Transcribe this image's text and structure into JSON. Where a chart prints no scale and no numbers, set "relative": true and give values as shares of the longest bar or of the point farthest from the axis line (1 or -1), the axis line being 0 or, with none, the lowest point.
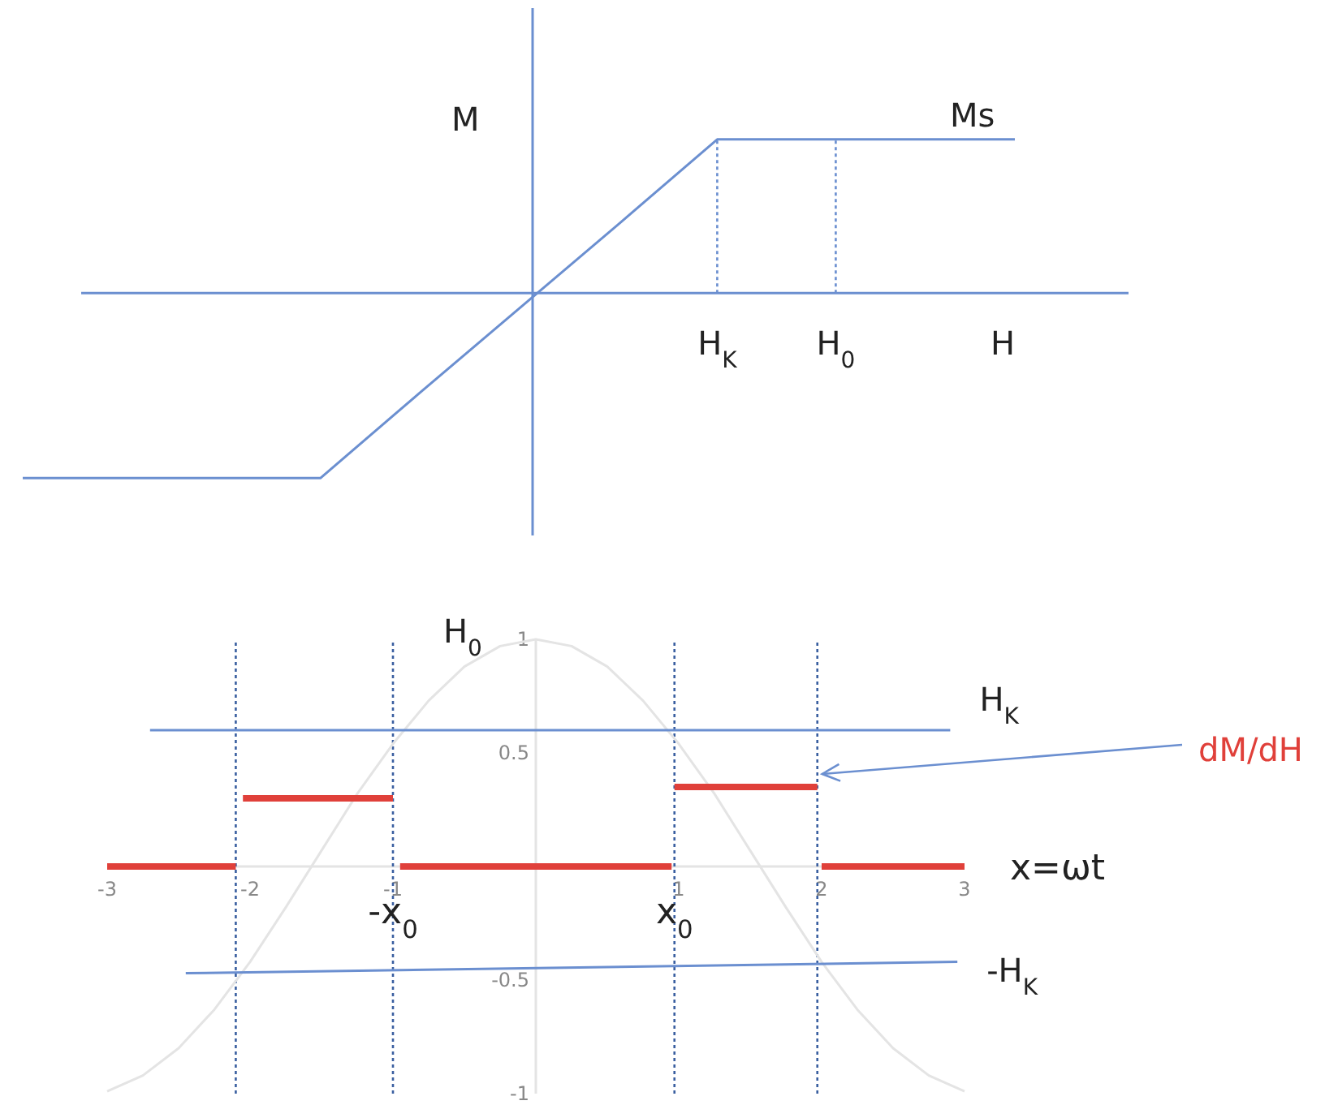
{
  "chart_data": [
    {
      "type": "line",
      "relative": true,
      "xlabel": "H",
      "ylabel": "M",
      "categories": [
        null,
        null,
        null,
        null,
        null,
        null,
        null,
        null,
        null,
        null,
        null
      ],
      "series": [
        {
          "color": "#6b8fd0",
          "values": [
            -1,
            -1,
            -1,
            -1,
            -0.54,
            -0.085,
            0.37,
            0.83,
            0.83,
            0.83,
            0.83
          ]
        }
      ],
      "ref_lines": [
        {
          "axis": "y",
          "value": 0,
          "color": "#6b8fd0"
        }
      ],
      "annotations": [
        "Ms",
        "H$_{K}$",
        "H$_{0}$"
      ]
    },
    {
      "type": "line",
      "xlabel": "x=ωt",
      "ylabel": "H$_{0}$",
      "xlim": [
        -3,
        3
      ],
      "ylim": [
        -1,
        1
      ],
      "xticks": [
        -3,
        -2,
        -1,
        1,
        2,
        3
      ],
      "yticks": [
        -1,
        -0.5,
        0.5,
        1
      ],
      "series": [
        {
          "color": "#e4e4e4",
          "x": [
            -3,
            -2.75,
            -2.5,
            -2.25,
            -2,
            -1.75,
            -1.5,
            -1.25,
            -1,
            -0.75,
            -0.5,
            -0.25,
            0,
            0.25,
            0.5,
            0.75,
            1,
            1.25,
            1.5,
            1.75,
            2,
            2.25,
            2.5,
            2.75,
            3
          ],
          "values": [
            -0.99,
            -0.92,
            -0.8,
            -0.63,
            -0.42,
            -0.18,
            0.07,
            0.32,
            0.54,
            0.73,
            0.88,
            0.97,
            1,
            0.97,
            0.88,
            0.73,
            0.54,
            0.32,
            0.07,
            -0.18,
            -0.42,
            -0.63,
            -0.8,
            -0.92,
            -0.99
          ]
        },
        {
          "name": "H$_{K}$",
          "color": "#6b8fd0",
          "x": [
            -2.7,
            2.9
          ],
          "values": [
            0.6,
            0.6
          ]
        },
        {
          "name": "-H$_{K}$",
          "color": "#6b8fd0",
          "x": [
            -2.45,
            2.95
          ],
          "values": [
            -0.47,
            -0.42
          ]
        },
        {
          "color": "#e0403a",
          "x": [
            -3,
            -2.1
          ],
          "values": [
            0,
            0
          ]
        },
        {
          "color": "#e0403a",
          "x": [
            -2.05,
            -1
          ],
          "values": [
            0.3,
            0.3
          ]
        },
        {
          "color": "#e0403a",
          "x": [
            -0.95,
            0.95
          ],
          "values": [
            0,
            0
          ]
        },
        {
          "name": "dM/dH",
          "color": "#e0403a",
          "x": [
            0.97,
            1.97
          ],
          "values": [
            0.35,
            0.35
          ]
        },
        {
          "color": "#e0403a",
          "x": [
            2,
            3
          ],
          "values": [
            0,
            0
          ]
        }
      ],
      "ref_lines": [
        {
          "axis": "x",
          "value": -2.1,
          "color": "#3a5fa0",
          "line_style": "dotted"
        },
        {
          "axis": "x",
          "value": -1,
          "color": "#3a5fa0",
          "line_style": "dotted"
        },
        {
          "axis": "x",
          "value": 0.97,
          "color": "#3a5fa0",
          "line_style": "dotted"
        },
        {
          "axis": "x",
          "value": 1.97,
          "color": "#3a5fa0",
          "line_style": "dotted"
        }
      ],
      "annotations": [
        {
          "text": "-x$_{0}$",
          "x": -1,
          "y": -0.15
        },
        {
          "text": "x$_{0}$",
          "x": 0.97,
          "y": -0.15
        }
      ]
    }
  ]
}
